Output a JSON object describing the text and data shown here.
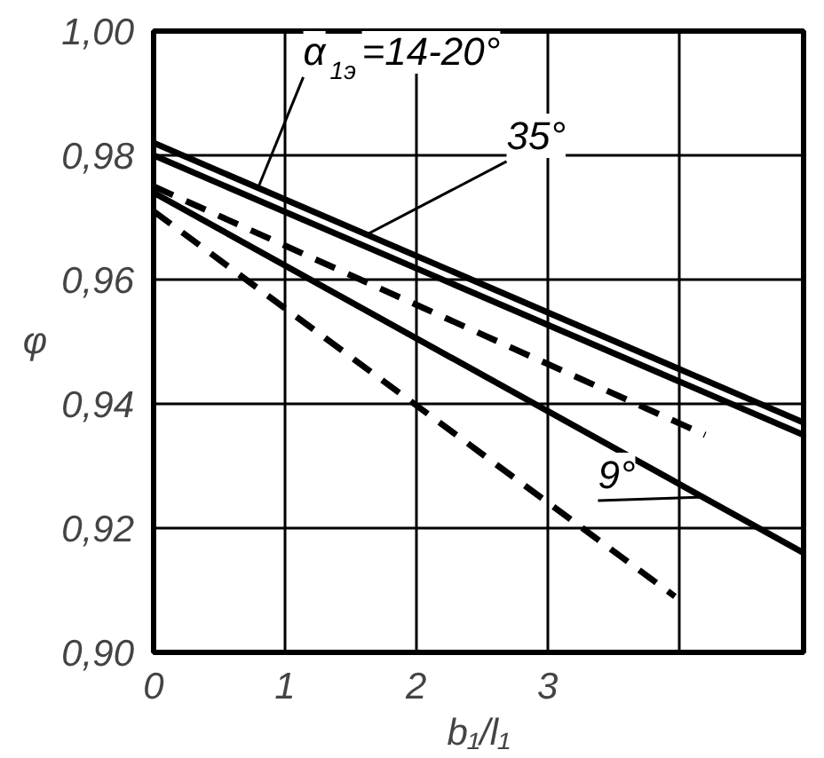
{
  "chart_data": {
    "type": "line",
    "xlabel": "b₁/l₁",
    "ylabel": "φ",
    "xlim": [
      0,
      4.95
    ],
    "ylim": [
      0.9,
      1.0
    ],
    "xticks": [
      0,
      1,
      2,
      3,
      {
        "value": 4,
        "label": null
      }
    ],
    "yticks": [
      {
        "value": 0.9,
        "label": "0,90"
      },
      {
        "value": 0.92,
        "label": "0,92"
      },
      {
        "value": 0.94,
        "label": "0,94"
      },
      {
        "value": 0.96,
        "label": "0,96"
      },
      {
        "value": 0.98,
        "label": "0,98"
      },
      {
        "value": 1.0,
        "label": "1,00"
      }
    ],
    "grid": true,
    "marker": "none",
    "series": [
      {
        "color": "#000000",
        "line_style": "solid",
        "x": [
          0,
          4.95
        ],
        "values": [
          0.982,
          0.937
        ]
      },
      {
        "color": "#000000",
        "line_style": "solid",
        "x": [
          0,
          4.95
        ],
        "values": [
          0.98,
          0.935
        ]
      },
      {
        "color": "#000000",
        "line_style": "solid",
        "x": [
          0,
          4.95
        ],
        "values": [
          0.974,
          0.916
        ]
      },
      {
        "color": "#000000",
        "line_style": "dashed",
        "x": [
          0,
          4.2
        ],
        "values": [
          0.975,
          0.935
        ]
      },
      {
        "color": "#000000",
        "line_style": "dashed",
        "x": [
          0,
          3.97
        ],
        "values": [
          0.971,
          0.909
        ]
      }
    ],
    "annotations": [
      {
        "text": "α$_{1э}$=14-20°",
        "x": 0.8,
        "y": 0.975
      },
      {
        "text": "35°",
        "x": 1.6,
        "y": 0.967
      },
      {
        "text": "9°",
        "x": 4.2,
        "y": 0.925
      }
    ]
  }
}
